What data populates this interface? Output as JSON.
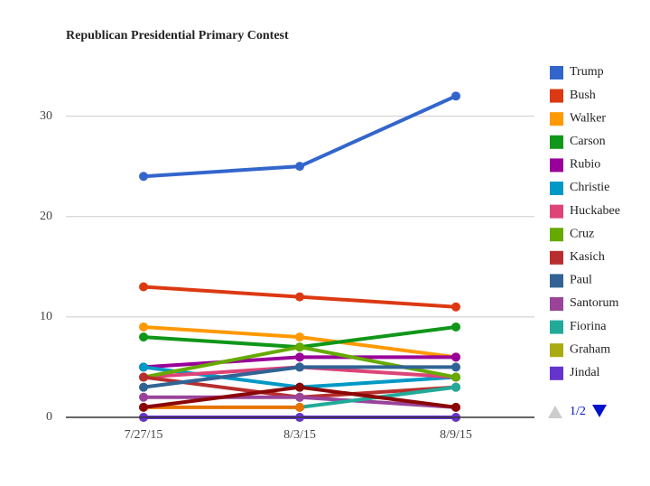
{
  "chart_data": {
    "type": "line",
    "title": "Republican Presidential Primary Contest",
    "categories": [
      "7/27/15",
      "8/3/15",
      "8/9/15"
    ],
    "ylim": [
      0,
      35
    ],
    "yticks": [
      0,
      10,
      20,
      30
    ],
    "grid": true,
    "legend": "right",
    "legend_page": "1/2",
    "series": [
      {
        "name": "Trump",
        "color": "#3366cc",
        "values": [
          24,
          25,
          32
        ]
      },
      {
        "name": "Bush",
        "color": "#dc3912",
        "values": [
          13,
          12,
          11
        ]
      },
      {
        "name": "Walker",
        "color": "#ff9900",
        "values": [
          9,
          8,
          6
        ]
      },
      {
        "name": "Carson",
        "color": "#109618",
        "values": [
          8,
          7,
          9
        ]
      },
      {
        "name": "Rubio",
        "color": "#990099",
        "values": [
          5,
          6,
          6
        ]
      },
      {
        "name": "Christie",
        "color": "#0099c6",
        "values": [
          5,
          3,
          4
        ]
      },
      {
        "name": "Huckabee",
        "color": "#dd4477",
        "values": [
          4,
          5,
          4
        ]
      },
      {
        "name": "Cruz",
        "color": "#66aa00",
        "values": [
          4,
          7,
          4
        ]
      },
      {
        "name": "Kasich",
        "color": "#b82e2e",
        "values": [
          4,
          2,
          3
        ]
      },
      {
        "name": "Paul",
        "color": "#316395",
        "values": [
          3,
          5,
          5
        ]
      },
      {
        "name": "Santorum",
        "color": "#994499",
        "values": [
          2,
          2,
          1
        ]
      },
      {
        "name": "Fiorina",
        "color": "#22aa99",
        "values": [
          null,
          1,
          3
        ]
      },
      {
        "name": "Graham",
        "color": "#aaaa11",
        "values": [
          0,
          0,
          0
        ]
      },
      {
        "name": "Jindal",
        "color": "#6633cc",
        "values": [
          0,
          0,
          0
        ]
      },
      {
        "color": "#e67300",
        "values": [
          1,
          1,
          null
        ]
      },
      {
        "color": "#8b0707",
        "values": [
          1,
          3,
          1
        ]
      }
    ]
  }
}
